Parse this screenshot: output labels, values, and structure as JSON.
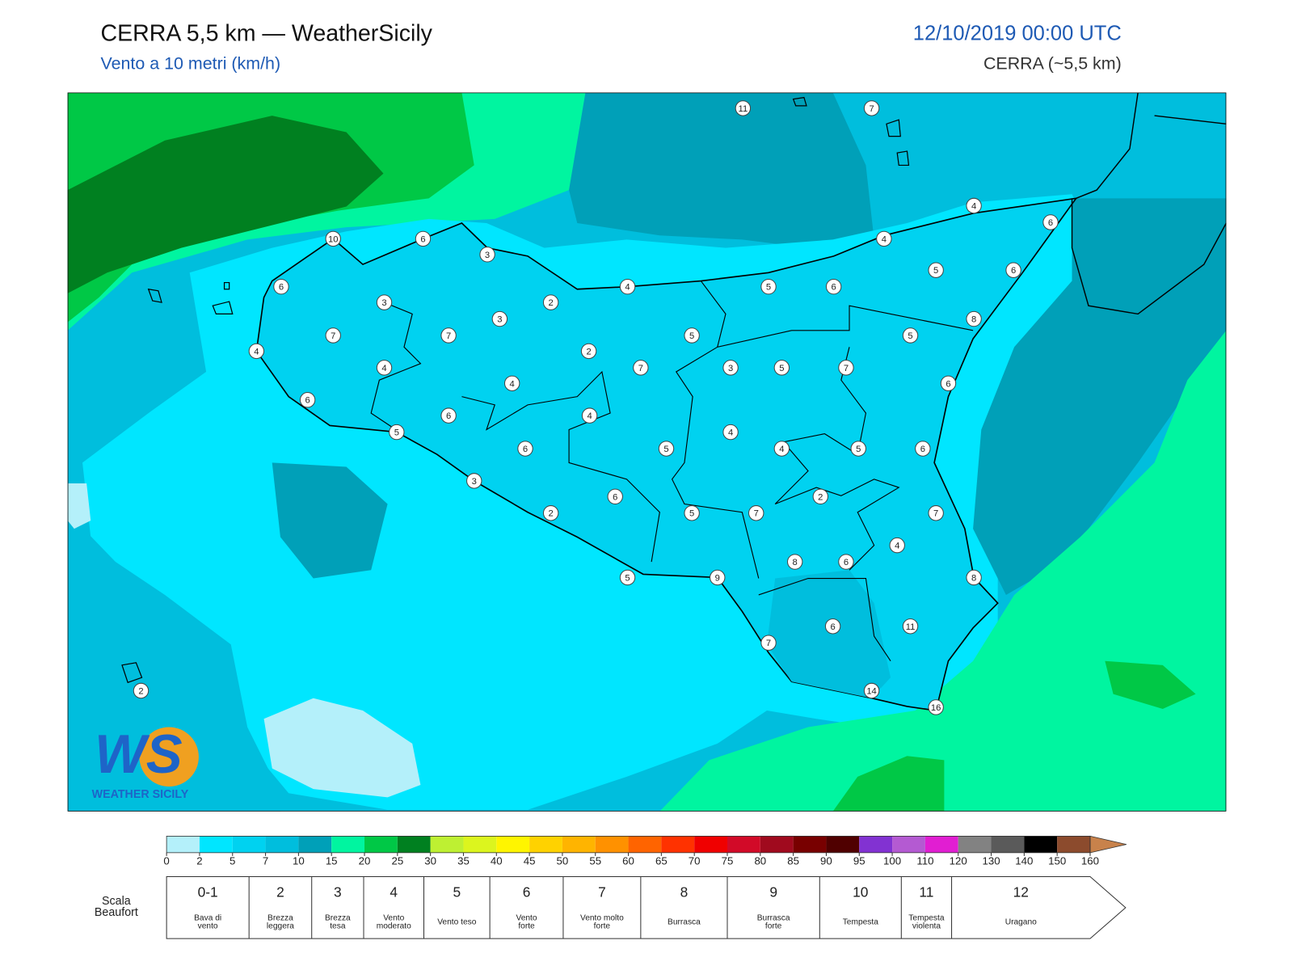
{
  "header": {
    "title": "CERRA 5,5 km — WeatherSicily",
    "subtitle": "Vento a 10 metri (km/h)",
    "datetime": "12/10/2019 00:00 UTC",
    "model": "CERRA (~5,5 km)"
  },
  "stations": [
    11,
    7,
    4,
    6,
    10,
    6,
    3,
    6,
    4,
    4,
    5,
    6,
    5,
    6,
    3,
    2,
    3,
    8,
    7,
    7,
    5,
    5,
    4,
    2,
    4,
    7,
    3,
    5,
    7,
    4,
    6,
    6,
    6,
    4,
    5,
    4,
    6,
    5,
    4,
    5,
    6,
    3,
    6,
    2,
    2,
    5,
    7,
    7,
    4,
    8,
    6,
    5,
    9,
    8,
    6,
    11,
    7,
    2,
    14,
    16
  ],
  "colorbar": {
    "ticks": [
      0,
      2,
      5,
      7,
      10,
      15,
      20,
      25,
      30,
      35,
      40,
      45,
      50,
      55,
      60,
      65,
      70,
      75,
      80,
      85,
      90,
      95,
      100,
      110,
      120,
      130,
      140,
      150,
      160
    ],
    "colors": [
      "#b4f0fa",
      "#00e6ff",
      "#00d2f0",
      "#00bedd",
      "#00a0b8",
      "#00f5a0",
      "#00c846",
      "#008020",
      "#bef032",
      "#dcf51e",
      "#fff500",
      "#ffd200",
      "#ffb400",
      "#ff9100",
      "#ff6400",
      "#ff3200",
      "#f00000",
      "#d20a28",
      "#a00a1e",
      "#780000",
      "#500000",
      "#8232d2",
      "#b45ad2",
      "#e11ed2",
      "#828282",
      "#5a5a5a",
      "#000000",
      "#8c4b2d",
      "#c8824b"
    ]
  },
  "beaufort": {
    "label": [
      "Scala",
      "Beaufort"
    ],
    "levels": [
      {
        "force": "0-1",
        "desc": [
          "Bava di",
          "vento"
        ]
      },
      {
        "force": "2",
        "desc": [
          "Brezza",
          "leggera"
        ]
      },
      {
        "force": "3",
        "desc": [
          "Brezza",
          "tesa"
        ]
      },
      {
        "force": "4",
        "desc": [
          "Vento",
          "moderato"
        ]
      },
      {
        "force": "5",
        "desc": [
          "Vento teso"
        ]
      },
      {
        "force": "6",
        "desc": [
          "Vento",
          "forte"
        ]
      },
      {
        "force": "7",
        "desc": [
          "Vento molto",
          "forte"
        ]
      },
      {
        "force": "8",
        "desc": [
          "Burrasca"
        ]
      },
      {
        "force": "9",
        "desc": [
          "Burrasca",
          "forte"
        ]
      },
      {
        "force": "10",
        "desc": [
          "Tempesta"
        ]
      },
      {
        "force": "11",
        "desc": [
          "Tempesta",
          "violenta"
        ]
      },
      {
        "force": "12",
        "desc": [
          "Uragano"
        ]
      }
    ]
  },
  "logo": {
    "mark": "WS",
    "text": "WEATHER SICILY"
  }
}
